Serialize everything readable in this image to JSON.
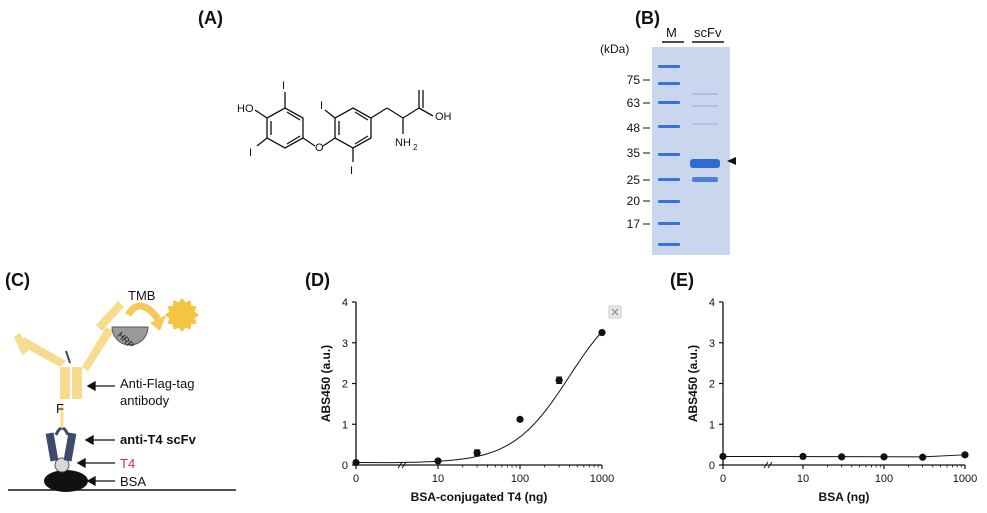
{
  "panels": {
    "a": {
      "label": "(A)"
    },
    "b": {
      "label": "(B)"
    },
    "c": {
      "label": "(C)"
    },
    "d": {
      "label": "(D)"
    },
    "e": {
      "label": "(E)"
    }
  },
  "molecule": {
    "atoms": {
      "ho": "HO",
      "i": "I",
      "o": "O",
      "oh": "OH",
      "nh2": "NH",
      "nh2_sub": "2"
    }
  },
  "gel": {
    "unit": "(kDa)",
    "lane_labels": [
      "M",
      "scFv"
    ],
    "markers": [
      "75",
      "63",
      "48",
      "35",
      "25",
      "20",
      "17"
    ],
    "colors": {
      "gel_bg": "#c9d6ee",
      "band": "#2f6bd6"
    }
  },
  "schematic": {
    "labels": {
      "tmb": "TMB",
      "hrp": "HRP",
      "flag": "F",
      "antibody_line1": "Anti-Flag-tag",
      "antibody_line2": "antibody",
      "scfv": "anti-T4 scFv",
      "t4": "T4",
      "bsa": "BSA"
    },
    "colors": {
      "antibody": "#f6dc8c",
      "scfv": "#3d4a6b",
      "t4_text": "#e03030",
      "tmb_product": "#f5c542"
    }
  },
  "chart_data": [
    {
      "type": "scatter",
      "panel": "D",
      "xlabel": "BSA-conjugated T4 (ng)",
      "ylabel": "ABS450 (a.u.)",
      "x_ticks": [
        "0",
        "10",
        "100",
        "1000"
      ],
      "y_ticks": [
        "0",
        "1",
        "2",
        "3",
        "4"
      ],
      "ylim": [
        0,
        4
      ],
      "x_scale": "log",
      "x": [
        0,
        10,
        30,
        100,
        300,
        1000
      ],
      "y": [
        0.06,
        0.1,
        0.3,
        1.12,
        2.08,
        3.25
      ],
      "error": [
        0.02,
        0.03,
        0.07,
        0.04,
        0.08,
        0.03
      ],
      "fit": "sigmoid"
    },
    {
      "type": "scatter",
      "panel": "E",
      "xlabel": "BSA (ng)",
      "ylabel": "ABS450 (a.u.)",
      "x_ticks": [
        "0",
        "10",
        "100",
        "1000"
      ],
      "y_ticks": [
        "0",
        "1",
        "2",
        "3",
        "4"
      ],
      "ylim": [
        0,
        4
      ],
      "x_scale": "log",
      "x": [
        0,
        10,
        30,
        100,
        300,
        1000
      ],
      "y": [
        0.21,
        0.21,
        0.2,
        0.2,
        0.19,
        0.25
      ],
      "fit": "flat"
    }
  ]
}
